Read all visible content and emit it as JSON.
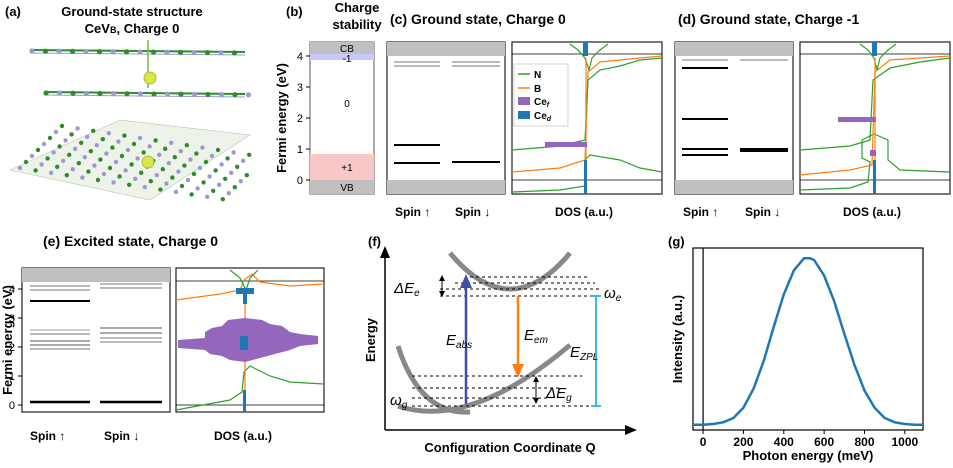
{
  "panel_a": {
    "letter": "(a)",
    "title_line1": "Ground-state structure",
    "title_line2": "CeV",
    "title_sub": "B",
    "title_tail": ", Charge 0"
  },
  "panel_b": {
    "letter": "(b)",
    "title_line1": "Charge",
    "title_line2": "stability",
    "ylabel": "Fermi energy (eV)",
    "yticks": [
      "0",
      "1",
      "2",
      "3",
      "4"
    ],
    "cb": "CB",
    "vb": "VB",
    "states": [
      "-1",
      "0",
      "+1"
    ]
  },
  "panel_c": {
    "title": "(c) Ground state, Charge 0",
    "spin_up": "Spin ↑",
    "spin_down": "Spin ↓",
    "dos_label": "DOS (a.u.)"
  },
  "panel_d": {
    "title": "(d) Ground state, Charge -1",
    "spin_up": "Spin ↑",
    "spin_down": "Spin ↓",
    "dos_label": "DOS (a.u.)"
  },
  "panel_e": {
    "title": "(e) Excited state, Charge 0",
    "ylabel": "Fermi energy (eV)",
    "yticks": [
      "0",
      "1",
      "2",
      "3",
      "4"
    ],
    "spin_up": "Spin ↑",
    "spin_down": "Spin ↓",
    "dos_label": "DOS (a.u.)"
  },
  "legend": {
    "n": "N",
    "b": "B",
    "ce": "Ce",
    "ce_f_sub": "f",
    "ce_d_sub": "d",
    "colors": {
      "n": "#2ca02c",
      "b": "#ff7f0e",
      "ce_f": "#9467bd",
      "ce_d": "#1f77b4"
    }
  },
  "panel_f": {
    "letter": "(f)",
    "ylabel": "Energy",
    "xlabel": "Configuration Coordinate Q",
    "de_e": "ΔE",
    "de_e_sub": "e",
    "de_g": "ΔE",
    "de_g_sub": "g",
    "omega_e": "ω",
    "omega_e_sub": "e",
    "omega_g": "ω",
    "omega_g_sub": "g",
    "e_abs": "E",
    "e_abs_sub": "abs",
    "e_em": "E",
    "e_em_sub": "em",
    "e_zpl": "E",
    "e_zpl_sub": "ZPL"
  },
  "panel_g": {
    "letter": "(g)"
  },
  "chart_data": {
    "type": "line",
    "xlabel": "Photon energy (meV)",
    "ylabel": "Intensity (a.u.)",
    "xlim": [
      -50,
      1090
    ],
    "xticks": [
      0,
      200,
      400,
      600,
      800,
      1000
    ],
    "x": [
      -50,
      0,
      50,
      100,
      150,
      200,
      250,
      300,
      350,
      400,
      450,
      500,
      530,
      550,
      600,
      650,
      700,
      750,
      800,
      850,
      900,
      950,
      1000,
      1050,
      1090
    ],
    "y": [
      0.03,
      0.03,
      0.035,
      0.045,
      0.07,
      0.13,
      0.24,
      0.4,
      0.6,
      0.79,
      0.93,
      1.0,
      1.0,
      0.99,
      0.9,
      0.75,
      0.56,
      0.38,
      0.23,
      0.13,
      0.07,
      0.045,
      0.035,
      0.03,
      0.03
    ],
    "color": "#1f77b4",
    "grid": false
  }
}
